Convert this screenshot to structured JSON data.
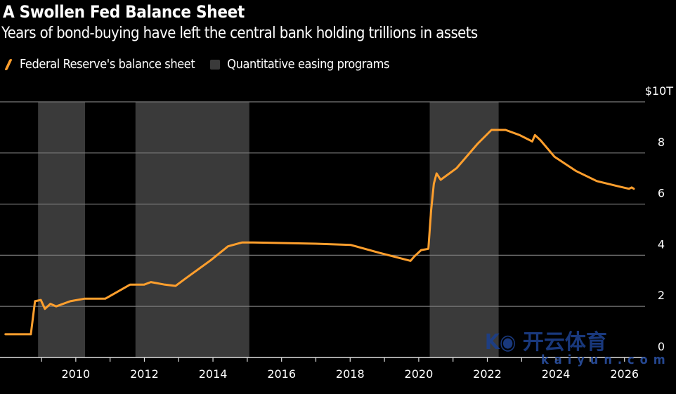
{
  "chart_data": {
    "type": "line",
    "title": "A Swollen Fed Balance Sheet",
    "subtitle": "Years of bond-buying have left the central bank holding trillions in assets",
    "legend": [
      {
        "name": "Federal Reserve's balance sheet",
        "color": "#ff9f2d",
        "kind": "line"
      },
      {
        "name": "Quantitative easing programs",
        "color": "#3a3a3a",
        "kind": "box"
      }
    ],
    "legend_placement": "top-left",
    "xlim": [
      2007.79,
      2026.6
    ],
    "ylim": [
      0,
      10
    ],
    "y_ticks": [
      {
        "v": 10,
        "label": "$10T"
      },
      {
        "v": 8,
        "label": "8"
      },
      {
        "v": 6,
        "label": "6"
      },
      {
        "v": 4,
        "label": "4"
      },
      {
        "v": 2,
        "label": "2"
      },
      {
        "v": 0,
        "label": "0"
      }
    ],
    "x_ticks": [
      {
        "v": 2010,
        "label": "2010"
      },
      {
        "v": 2012,
        "label": "2012"
      },
      {
        "v": 2014,
        "label": "2014"
      },
      {
        "v": 2016,
        "label": "2016"
      },
      {
        "v": 2018,
        "label": "2018"
      },
      {
        "v": 2020,
        "label": "2020"
      },
      {
        "v": 2022,
        "label": "2022"
      },
      {
        "v": 2024,
        "label": "2024"
      },
      {
        "v": 2026,
        "label": "2026"
      }
    ],
    "grid": true,
    "qe_periods": [
      [
        2008.9,
        2010.27
      ],
      [
        2011.74,
        2015.06
      ],
      [
        2020.32,
        2022.33
      ]
    ],
    "series": [
      {
        "name": "Federal Reserve's balance sheet",
        "unit": "trillion USD",
        "points": [
          [
            2007.95,
            0.91
          ],
          [
            2008.69,
            0.91
          ],
          [
            2008.81,
            2.2
          ],
          [
            2008.98,
            2.25
          ],
          [
            2009.1,
            1.9
          ],
          [
            2009.26,
            2.1
          ],
          [
            2009.43,
            2.0
          ],
          [
            2009.84,
            2.2
          ],
          [
            2010.25,
            2.3
          ],
          [
            2010.86,
            2.3
          ],
          [
            2011.58,
            2.85
          ],
          [
            2011.99,
            2.85
          ],
          [
            2012.19,
            2.95
          ],
          [
            2012.6,
            2.85
          ],
          [
            2012.91,
            2.8
          ],
          [
            2013.21,
            3.1
          ],
          [
            2013.93,
            3.8
          ],
          [
            2014.44,
            4.35
          ],
          [
            2014.85,
            4.5
          ],
          [
            2015.16,
            4.5
          ],
          [
            2017.0,
            4.45
          ],
          [
            2018.02,
            4.4
          ],
          [
            2018.84,
            4.1
          ],
          [
            2019.76,
            3.78
          ],
          [
            2019.87,
            3.95
          ],
          [
            2020.07,
            4.2
          ],
          [
            2020.28,
            4.25
          ],
          [
            2020.36,
            5.75
          ],
          [
            2020.44,
            6.8
          ],
          [
            2020.52,
            7.2
          ],
          [
            2020.64,
            6.95
          ],
          [
            2021.1,
            7.4
          ],
          [
            2021.71,
            8.35
          ],
          [
            2022.12,
            8.9
          ],
          [
            2022.53,
            8.9
          ],
          [
            2022.94,
            8.7
          ],
          [
            2023.31,
            8.45
          ],
          [
            2023.39,
            8.7
          ],
          [
            2023.55,
            8.5
          ],
          [
            2023.96,
            7.85
          ],
          [
            2024.58,
            7.3
          ],
          [
            2025.19,
            6.9
          ],
          [
            2025.8,
            6.7
          ],
          [
            2026.13,
            6.6
          ],
          [
            2026.21,
            6.65
          ],
          [
            2026.27,
            6.6
          ]
        ]
      }
    ]
  },
  "watermark": {
    "text": "开云体育",
    "url_text": "kaiyun.com"
  }
}
